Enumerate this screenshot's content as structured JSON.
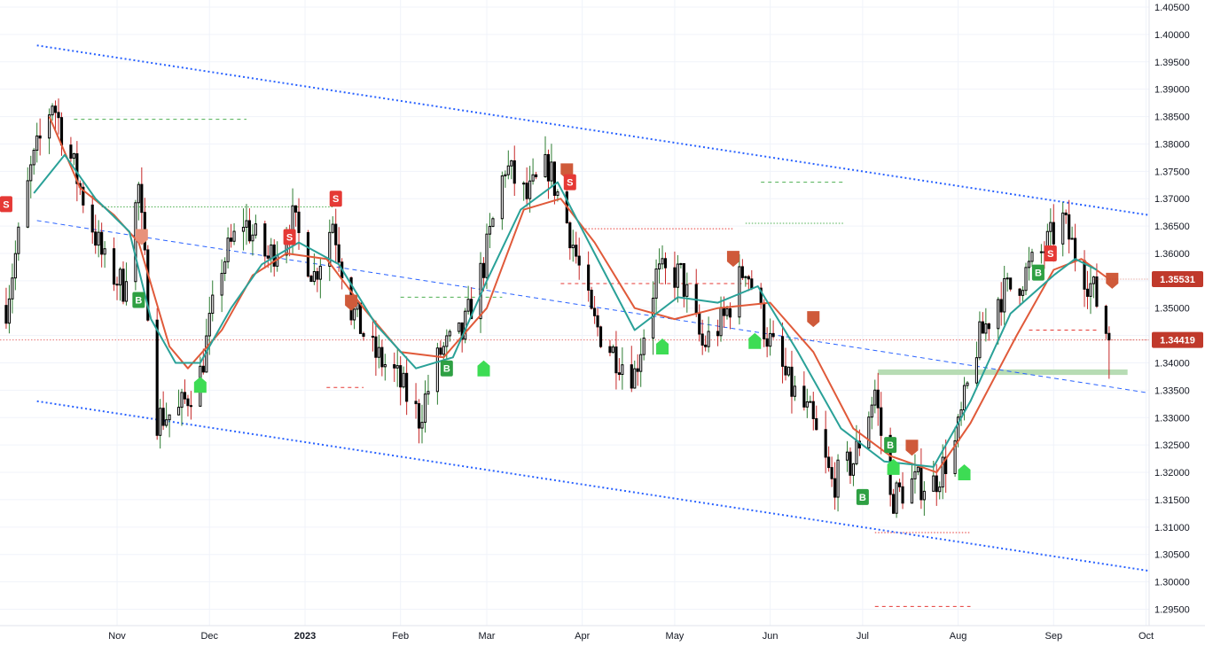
{
  "chart_data": {
    "type": "candlestick",
    "title": "",
    "xlabel": "",
    "ylabel": "",
    "x_range": [
      "2022-09-24",
      "2023-10-02"
    ],
    "ylim": [
      1.292,
      1.4063
    ],
    "x_tick_labels": [
      {
        "label": "Nov",
        "date": "2022-11-01"
      },
      {
        "label": "Dec",
        "date": "2022-12-01"
      },
      {
        "label": "2023",
        "date": "2023-01-01"
      },
      {
        "label": "Feb",
        "date": "2023-02-01"
      },
      {
        "label": "Mar",
        "date": "2023-03-01"
      },
      {
        "label": "Apr",
        "date": "2023-04-01"
      },
      {
        "label": "May",
        "date": "2023-05-01"
      },
      {
        "label": "Jun",
        "date": "2023-06-01"
      },
      {
        "label": "Jul",
        "date": "2023-07-01"
      },
      {
        "label": "Aug",
        "date": "2023-08-01"
      },
      {
        "label": "Sep",
        "date": "2023-09-01"
      },
      {
        "label": "Oct",
        "date": "2023-10-01"
      }
    ],
    "y_tick_labels": [
      "1.29500",
      "1.30000",
      "1.30500",
      "1.31000",
      "1.31500",
      "1.32000",
      "1.32500",
      "1.33000",
      "1.33500",
      "1.34000",
      "1.34500",
      "1.35000",
      "1.35500",
      "1.36000",
      "1.36500",
      "1.37000",
      "1.37500",
      "1.38000",
      "1.38500",
      "1.39000",
      "1.39500",
      "1.40000",
      "1.40500"
    ],
    "price_badges": [
      {
        "label": "1.35531",
        "value": 1.35531,
        "color": "#c0392b"
      },
      {
        "label": "1.34419",
        "value": 1.34419,
        "color": "#c0392b"
      }
    ],
    "current_price": 1.34419,
    "price_path": [
      [
        "2022-09-26",
        1.3505
      ],
      [
        "2022-10-04",
        1.375
      ],
      [
        "2022-10-11",
        1.388
      ],
      [
        "2022-10-20",
        1.372
      ],
      [
        "2022-10-28",
        1.358
      ],
      [
        "2022-11-03",
        1.354
      ],
      [
        "2022-11-08",
        1.372
      ],
      [
        "2022-11-14",
        1.33
      ],
      [
        "2022-11-21",
        1.331
      ],
      [
        "2022-11-28",
        1.338
      ],
      [
        "2022-12-05",
        1.358
      ],
      [
        "2022-12-12",
        1.366
      ],
      [
        "2022-12-20",
        1.359
      ],
      [
        "2022-12-28",
        1.366
      ],
      [
        "2023-01-04",
        1.356
      ],
      [
        "2023-01-10",
        1.366
      ],
      [
        "2023-01-16",
        1.35
      ],
      [
        "2023-01-23",
        1.342
      ],
      [
        "2023-01-30",
        1.338
      ],
      [
        "2023-02-07",
        1.33
      ],
      [
        "2023-02-14",
        1.342
      ],
      [
        "2023-02-21",
        1.345
      ],
      [
        "2023-02-28",
        1.358
      ],
      [
        "2023-03-07",
        1.376
      ],
      [
        "2023-03-14",
        1.37
      ],
      [
        "2023-03-21",
        1.376
      ],
      [
        "2023-03-28",
        1.364
      ],
      [
        "2023-04-04",
        1.348
      ],
      [
        "2023-04-11",
        1.342
      ],
      [
        "2023-04-18",
        1.338
      ],
      [
        "2023-04-25",
        1.356
      ],
      [
        "2023-05-03",
        1.356
      ],
      [
        "2023-05-10",
        1.343
      ],
      [
        "2023-05-17",
        1.348
      ],
      [
        "2023-05-24",
        1.358
      ],
      [
        "2023-05-31",
        1.345
      ],
      [
        "2023-06-07",
        1.336
      ],
      [
        "2023-06-14",
        1.33
      ],
      [
        "2023-06-21",
        1.318
      ],
      [
        "2023-06-28",
        1.322
      ],
      [
        "2023-07-05",
        1.335
      ],
      [
        "2023-07-10",
        1.315
      ],
      [
        "2023-07-17",
        1.318
      ],
      [
        "2023-07-24",
        1.318
      ],
      [
        "2023-07-31",
        1.325
      ],
      [
        "2023-08-07",
        1.343
      ],
      [
        "2023-08-14",
        1.352
      ],
      [
        "2023-08-21",
        1.355
      ],
      [
        "2023-08-28",
        1.36
      ],
      [
        "2023-09-04",
        1.366
      ],
      [
        "2023-09-08",
        1.36
      ],
      [
        "2023-09-14",
        1.353
      ],
      [
        "2023-09-19",
        1.3442
      ]
    ],
    "moving_averages": [
      {
        "color": "#e05a3a",
        "points": [
          [
            "2022-10-10",
            1.385
          ],
          [
            "2022-10-20",
            1.372
          ],
          [
            "2022-10-31",
            1.367
          ],
          [
            "2022-11-08",
            1.362
          ],
          [
            "2022-11-18",
            1.343
          ],
          [
            "2022-11-24",
            1.339
          ],
          [
            "2022-12-05",
            1.346
          ],
          [
            "2022-12-15",
            1.356
          ],
          [
            "2022-12-26",
            1.36
          ],
          [
            "2023-01-08",
            1.359
          ],
          [
            "2023-01-20",
            1.35
          ],
          [
            "2023-02-01",
            1.342
          ],
          [
            "2023-02-15",
            1.341
          ],
          [
            "2023-03-01",
            1.35
          ],
          [
            "2023-03-13",
            1.368
          ],
          [
            "2023-03-25",
            1.37
          ],
          [
            "2023-04-05",
            1.362
          ],
          [
            "2023-04-18",
            1.35
          ],
          [
            "2023-05-01",
            1.348
          ],
          [
            "2023-05-15",
            1.35
          ],
          [
            "2023-06-01",
            1.351
          ],
          [
            "2023-06-15",
            1.342
          ],
          [
            "2023-06-28",
            1.328
          ],
          [
            "2023-07-10",
            1.323
          ],
          [
            "2023-07-25",
            1.32
          ],
          [
            "2023-08-05",
            1.329
          ],
          [
            "2023-08-20",
            1.345
          ],
          [
            "2023-09-01",
            1.357
          ],
          [
            "2023-09-10",
            1.359
          ],
          [
            "2023-09-19",
            1.3553
          ]
        ]
      },
      {
        "color": "#2aa198",
        "points": [
          [
            "2022-10-05",
            1.371
          ],
          [
            "2022-10-15",
            1.378
          ],
          [
            "2022-10-25",
            1.37
          ],
          [
            "2022-11-05",
            1.364
          ],
          [
            "2022-11-12",
            1.348
          ],
          [
            "2022-11-20",
            1.34
          ],
          [
            "2022-11-28",
            1.34
          ],
          [
            "2022-12-08",
            1.35
          ],
          [
            "2022-12-18",
            1.358
          ],
          [
            "2022-12-30",
            1.362
          ],
          [
            "2023-01-12",
            1.358
          ],
          [
            "2023-01-24",
            1.347
          ],
          [
            "2023-02-06",
            1.339
          ],
          [
            "2023-02-18",
            1.341
          ],
          [
            "2023-03-01",
            1.355
          ],
          [
            "2023-03-12",
            1.368
          ],
          [
            "2023-03-24",
            1.373
          ],
          [
            "2023-04-05",
            1.36
          ],
          [
            "2023-04-18",
            1.346
          ],
          [
            "2023-05-02",
            1.352
          ],
          [
            "2023-05-15",
            1.351
          ],
          [
            "2023-05-28",
            1.354
          ],
          [
            "2023-06-10",
            1.342
          ],
          [
            "2023-06-24",
            1.328
          ],
          [
            "2023-07-08",
            1.322
          ],
          [
            "2023-07-24",
            1.321
          ],
          [
            "2023-08-05",
            1.333
          ],
          [
            "2023-08-18",
            1.349
          ],
          [
            "2023-09-01",
            1.356
          ],
          [
            "2023-09-08",
            1.359
          ],
          [
            "2023-09-15",
            1.357
          ]
        ]
      }
    ],
    "channel_lines": [
      {
        "style": "dotted",
        "color": "#2962ff",
        "from": [
          "2022-10-06",
          1.398
        ],
        "to": [
          "2023-10-02",
          1.367
        ]
      },
      {
        "style": "dotted",
        "color": "#2962ff",
        "from": [
          "2022-10-06",
          1.333
        ],
        "to": [
          "2023-10-02",
          1.302
        ]
      },
      {
        "style": "dashed",
        "color": "#2962ff",
        "from": [
          "2022-10-06",
          1.366
        ],
        "to": [
          "2023-10-02",
          1.3345
        ]
      }
    ],
    "support_zone": {
      "from": "2023-07-06",
      "to": "2023-09-25",
      "low": 1.3378,
      "high": 1.3388,
      "color": "#b7dcb4"
    },
    "level_lines": [
      {
        "from": "2022-10-18",
        "to": "2022-12-13",
        "value": 1.3845,
        "color": "#4caf50",
        "style": "dashed"
      },
      {
        "from": "2022-10-27",
        "to": "2023-01-10",
        "value": 1.3685,
        "color": "#4caf50",
        "style": "dotted"
      },
      {
        "from": "2023-02-01",
        "to": "2023-03-06",
        "value": 1.352,
        "color": "#4caf50",
        "style": "dashed"
      },
      {
        "from": "2023-05-29",
        "to": "2023-06-25",
        "value": 1.373,
        "color": "#4caf50",
        "style": "dashed"
      },
      {
        "from": "2023-05-24",
        "to": "2023-06-25",
        "value": 1.3655,
        "color": "#4caf50",
        "style": "dotted"
      },
      {
        "from": "2023-03-25",
        "to": "2023-05-25",
        "value": 1.3545,
        "color": "#e53935",
        "style": "dashed"
      },
      {
        "from": "2023-04-01",
        "to": "2023-05-20",
        "value": 1.3645,
        "color": "#e53935",
        "style": "dotted"
      },
      {
        "from": "2023-01-08",
        "to": "2023-01-20",
        "value": 1.3355,
        "color": "#e53935",
        "style": "dashed"
      },
      {
        "from": "2023-08-24",
        "to": "2023-09-16",
        "value": 1.346,
        "color": "#e53935",
        "style": "dashed"
      },
      {
        "from": "2023-07-05",
        "to": "2023-08-05",
        "value": 1.309,
        "color": "#e53935",
        "style": "dotted"
      },
      {
        "from": "2023-07-05",
        "to": "2023-08-05",
        "value": 1.2955,
        "color": "#e53935",
        "style": "dashed"
      },
      {
        "from": "2022-09-24",
        "to": "2023-10-02",
        "value": 1.3442,
        "color": "#e57373",
        "style": "dotted"
      }
    ],
    "signals": [
      {
        "label": "S",
        "date": "2022-09-26",
        "value": 1.369,
        "color": "#e53935",
        "shape": "badge"
      },
      {
        "label": "",
        "date": "2022-11-09",
        "value": 1.363,
        "color": "#e8917a",
        "shape": "down"
      },
      {
        "label": "B",
        "date": "2022-11-08",
        "value": 1.3515,
        "color": "#2ea043",
        "shape": "badge"
      },
      {
        "label": "",
        "date": "2022-11-28",
        "value": 1.336,
        "color": "#3ddc54",
        "shape": "up"
      },
      {
        "label": "S",
        "date": "2022-12-27",
        "value": 1.363,
        "color": "#e53935",
        "shape": "badge"
      },
      {
        "label": "S",
        "date": "2023-01-11",
        "value": 1.37,
        "color": "#e53935",
        "shape": "badge"
      },
      {
        "label": "",
        "date": "2023-01-16",
        "value": 1.351,
        "color": "#cf5a3a",
        "shape": "down"
      },
      {
        "label": "B",
        "date": "2023-02-16",
        "value": 1.339,
        "color": "#2ea043",
        "shape": "badge"
      },
      {
        "label": "",
        "date": "2023-02-28",
        "value": 1.339,
        "color": "#3ddc54",
        "shape": "up"
      },
      {
        "label": "",
        "date": "2023-03-27",
        "value": 1.375,
        "color": "#cf5a3a",
        "shape": "down"
      },
      {
        "label": "S",
        "date": "2023-03-28",
        "value": 1.373,
        "color": "#e53935",
        "shape": "badge"
      },
      {
        "label": "",
        "date": "2023-04-27",
        "value": 1.343,
        "color": "#3ddc54",
        "shape": "up"
      },
      {
        "label": "",
        "date": "2023-05-20",
        "value": 1.359,
        "color": "#cf5a3a",
        "shape": "down"
      },
      {
        "label": "",
        "date": "2023-05-27",
        "value": 1.344,
        "color": "#3ddc54",
        "shape": "up"
      },
      {
        "label": "",
        "date": "2023-06-15",
        "value": 1.348,
        "color": "#cf5a3a",
        "shape": "down"
      },
      {
        "label": "B",
        "date": "2023-07-01",
        "value": 1.3155,
        "color": "#2ea043",
        "shape": "badge"
      },
      {
        "label": "B",
        "date": "2023-07-10",
        "value": 1.325,
        "color": "#2ea043",
        "shape": "badge"
      },
      {
        "label": "",
        "date": "2023-07-11",
        "value": 1.321,
        "color": "#3ddc54",
        "shape": "up"
      },
      {
        "label": "",
        "date": "2023-07-17",
        "value": 1.3245,
        "color": "#cf5a3a",
        "shape": "down"
      },
      {
        "label": "",
        "date": "2023-08-03",
        "value": 1.32,
        "color": "#3ddc54",
        "shape": "up"
      },
      {
        "label": "B",
        "date": "2023-08-27",
        "value": 1.3565,
        "color": "#2ea043",
        "shape": "badge"
      },
      {
        "label": "S",
        "date": "2023-08-31",
        "value": 1.36,
        "color": "#e53935",
        "shape": "badge"
      },
      {
        "label": "",
        "date": "2023-09-20",
        "value": 1.355,
        "color": "#cf5a3a",
        "shape": "down"
      }
    ]
  }
}
